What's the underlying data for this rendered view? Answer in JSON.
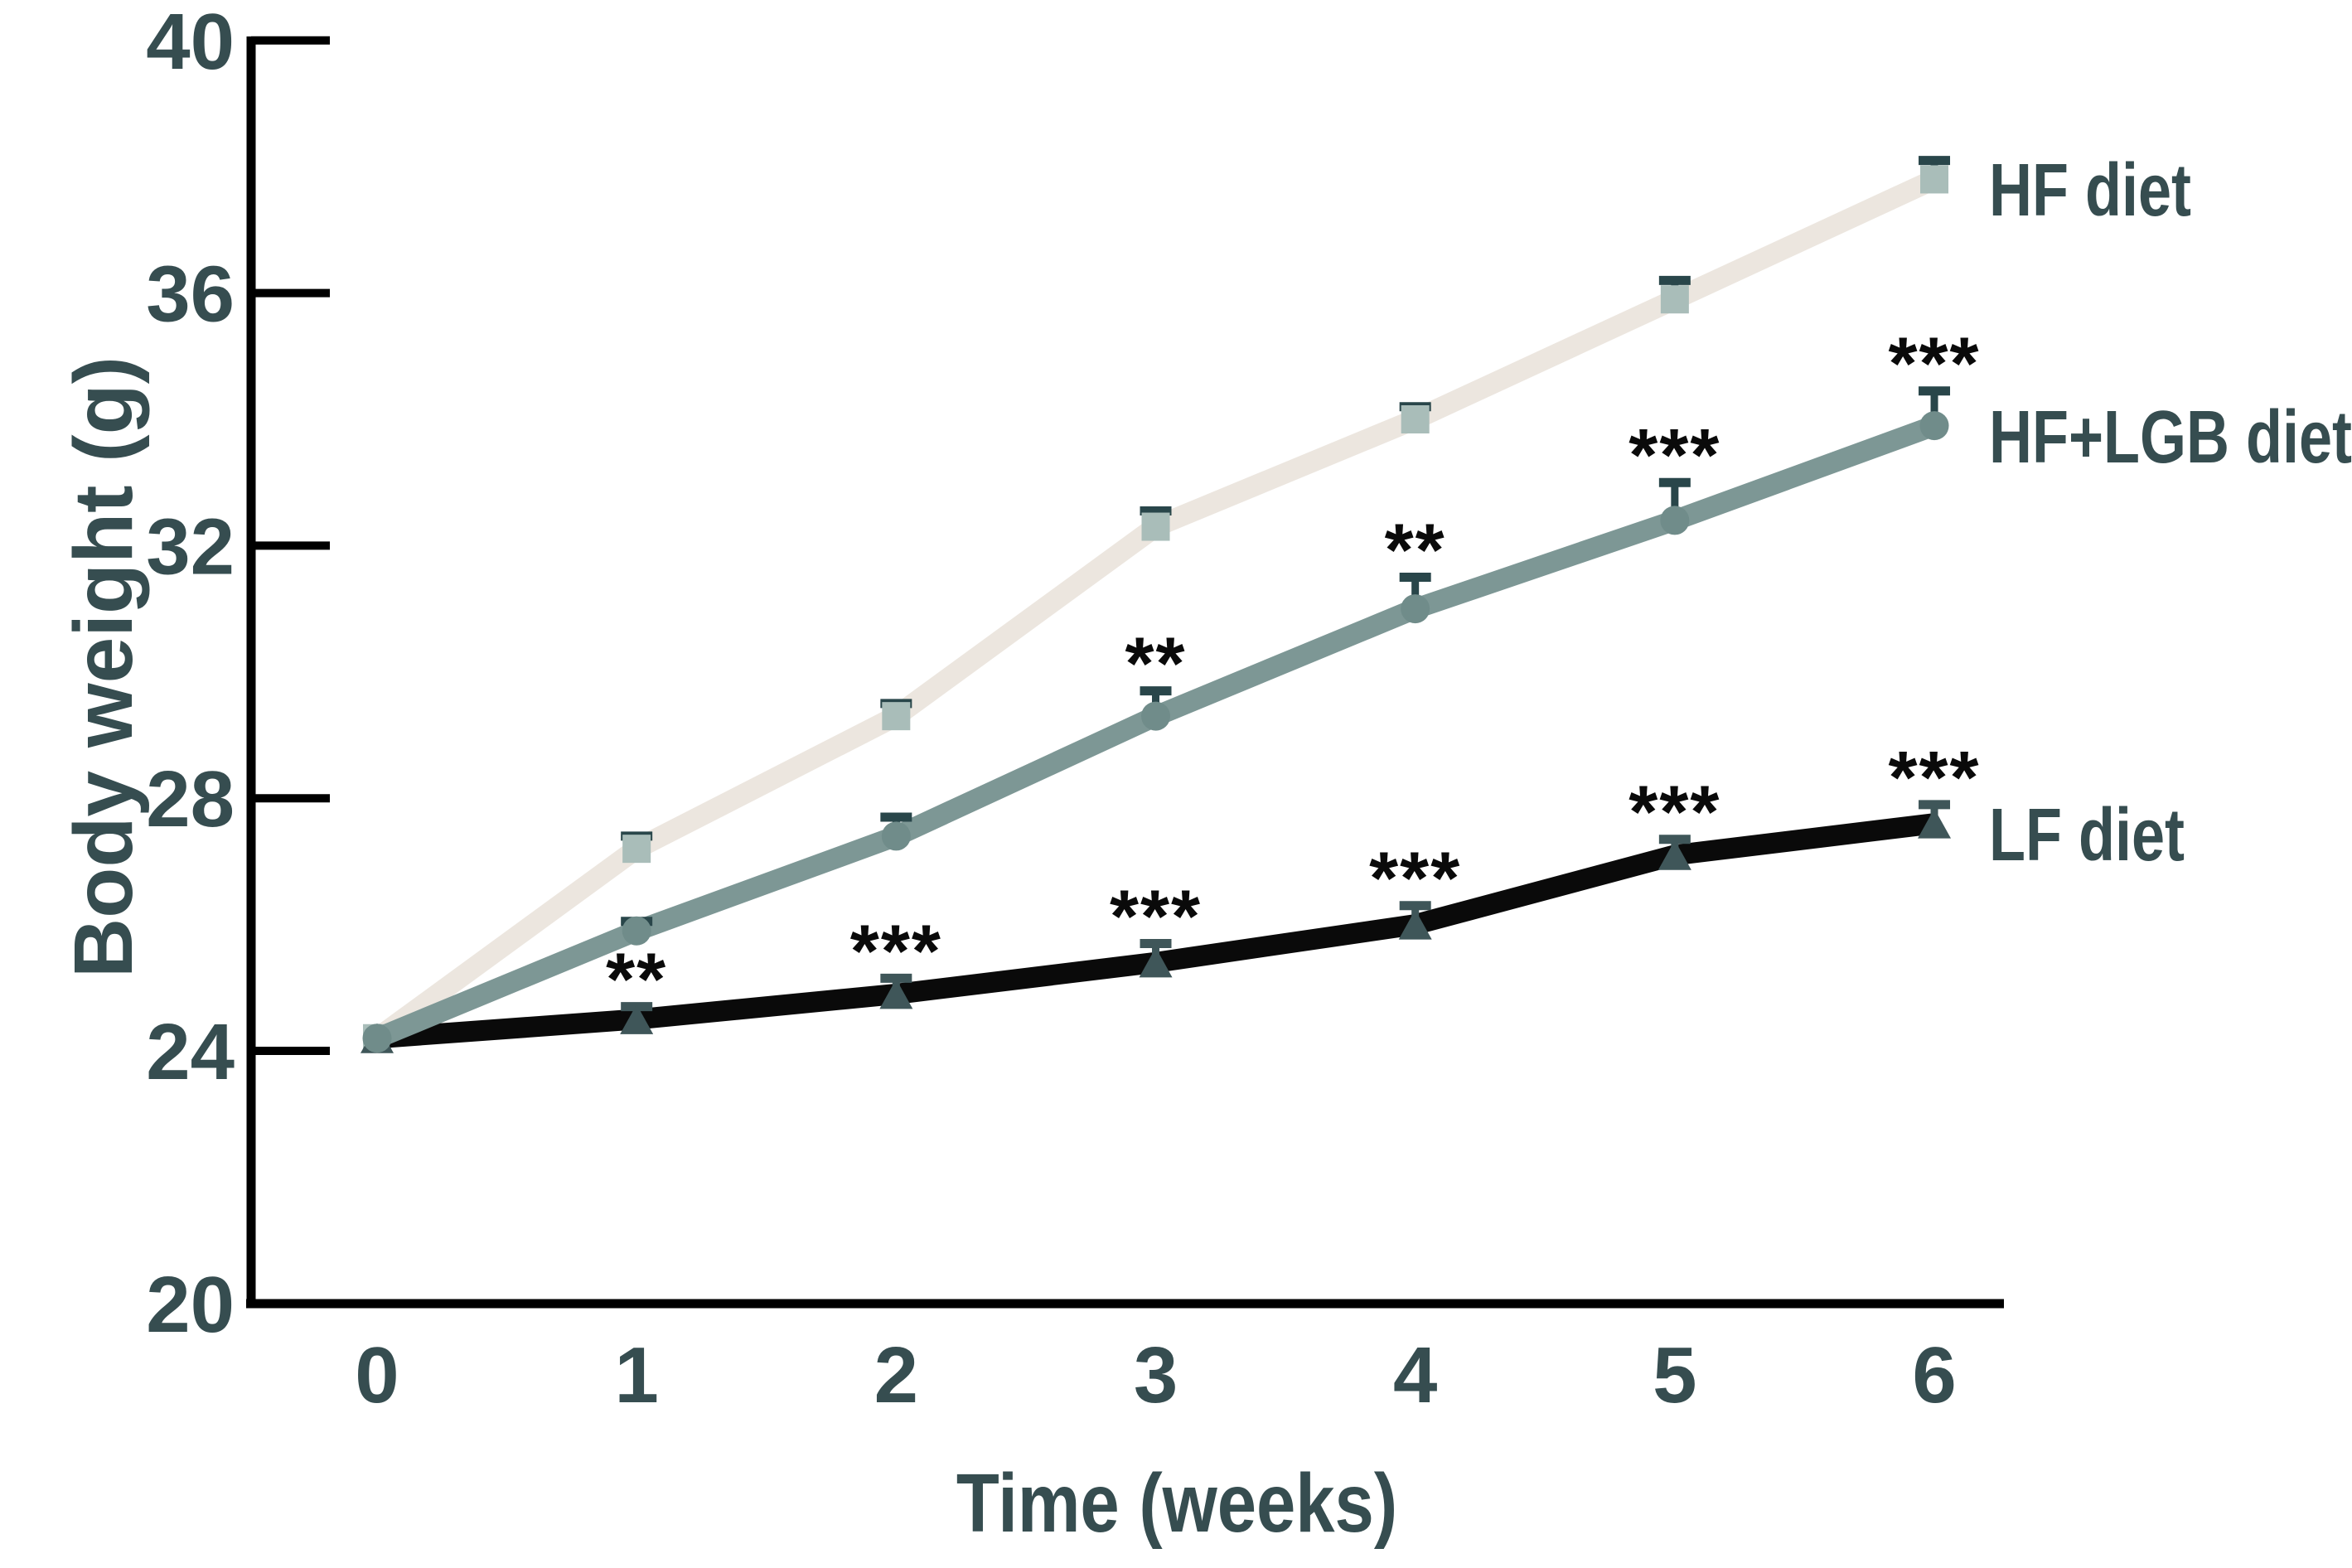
{
  "chart_data": {
    "type": "line",
    "title": "",
    "xlabel": "Time (weeks)",
    "ylabel": "Body weight (g)",
    "x": [
      0,
      1,
      2,
      3,
      4,
      5,
      6
    ],
    "x_tick_labels": [
      "0",
      "1",
      "2",
      "3",
      "4",
      "5",
      "6"
    ],
    "y_ticks": [
      20,
      24,
      28,
      32,
      36,
      40
    ],
    "ylim": [
      20,
      40
    ],
    "xlim": [
      -0.5,
      6.3
    ],
    "grid": false,
    "legend_position": "right-of-line-ends",
    "error_bars": "upper-only",
    "series": [
      {
        "name": "HF diet",
        "marker": "square",
        "line_color": "#ece6df",
        "marker_color": "#a9bdb9",
        "error_color": "#29464a",
        "values": [
          24.2,
          27.2,
          29.3,
          32.3,
          34.0,
          35.9,
          37.8
        ],
        "errors_upper": [
          0,
          0.2,
          0.2,
          0.25,
          0.2,
          0.3,
          0.3
        ],
        "annotations": {}
      },
      {
        "name": "HF+LGB diet",
        "marker": "circle",
        "line_color": "#7d9795",
        "marker_color": "#708c8a",
        "error_color": "#29464a",
        "values": [
          24.2,
          25.9,
          27.4,
          29.3,
          31.0,
          32.4,
          33.9
        ],
        "errors_upper": [
          0,
          0.15,
          0.3,
          0.4,
          0.5,
          0.6,
          0.55
        ],
        "annotations": {
          "3": "**",
          "4": "**",
          "5": "***",
          "6": "***"
        }
      },
      {
        "name": "LF diet",
        "marker": "triangle",
        "line_color": "#0a0a0a",
        "marker_color": "#3f5659",
        "error_color": "#3f5659",
        "values": [
          24.2,
          24.5,
          24.9,
          25.4,
          26.0,
          27.1,
          27.6
        ],
        "errors_upper": [
          0,
          0.2,
          0.25,
          0.3,
          0.3,
          0.25,
          0.3
        ],
        "annotations": {
          "1": "**",
          "2": "***",
          "3": "***",
          "4": "***",
          "5": "***",
          "6": "***"
        }
      }
    ],
    "colors": {
      "axis": "#000000",
      "tick_text": "#364d50",
      "asterisk": "#0a0a0a"
    }
  }
}
